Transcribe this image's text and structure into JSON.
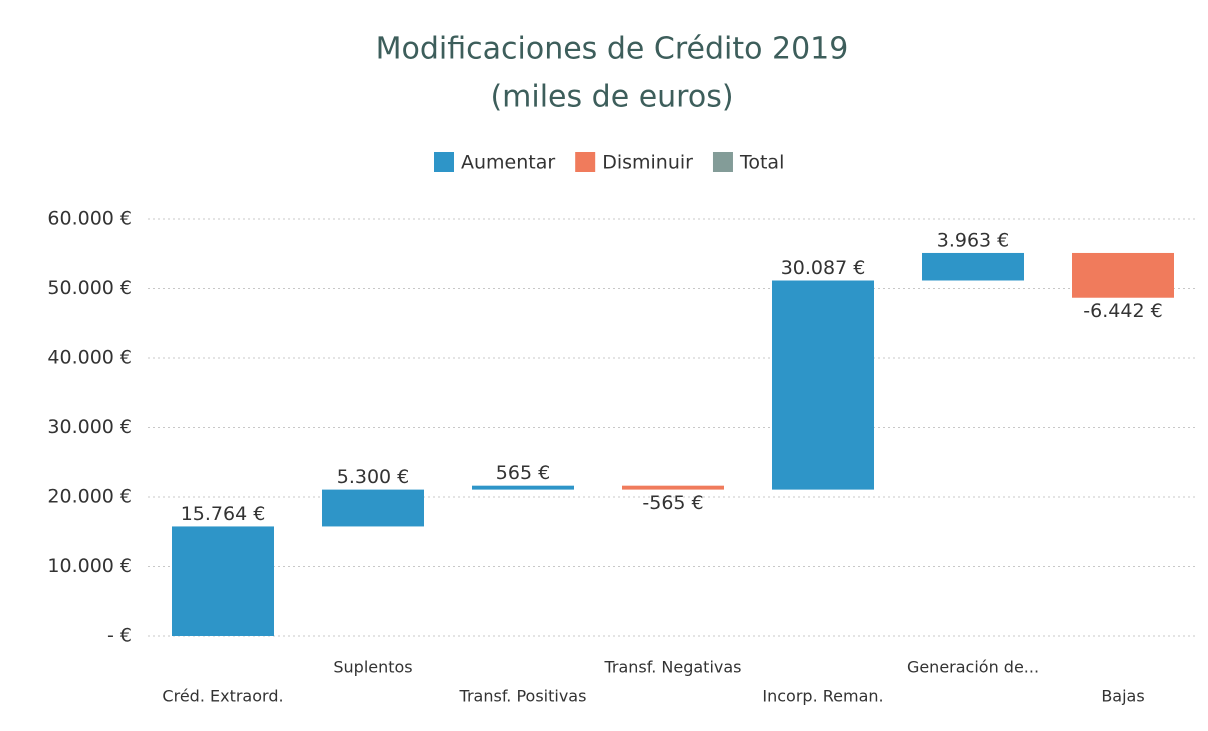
{
  "chart_data": {
    "type": "waterfall",
    "title": "Modificaciones de Crédito 2019",
    "subtitle": "(miles de euros)",
    "legend": [
      {
        "name": "Aumentar",
        "color": "#2e95c8"
      },
      {
        "name": "Disminuir",
        "color": "#f07b5c"
      },
      {
        "name": "Total",
        "color": "#839c98"
      }
    ],
    "categories": [
      "Créd. Extraord.",
      "Suplentos",
      "Transf. Positivas",
      "Transf. Negativas",
      "Incorp. Reman.",
      "Generación de...",
      "Bajas"
    ],
    "values": [
      15764,
      5300,
      565,
      -565,
      30087,
      3963,
      -6442
    ],
    "value_labels": [
      "15.764 €",
      "5.300 €",
      "565 €",
      "-565 €",
      "30.087 €",
      "3.963 €",
      "-6.442 €"
    ],
    "ylim": [
      0,
      60000
    ],
    "yticks": [
      {
        "value": 0,
        "label": "-  €"
      },
      {
        "value": 10000,
        "label": "10.000 €"
      },
      {
        "value": 20000,
        "label": "20.000 €"
      },
      {
        "value": 30000,
        "label": "30.000 €"
      },
      {
        "value": 40000,
        "label": "40.000 €"
      },
      {
        "value": 50000,
        "label": "50.000 €"
      },
      {
        "value": 60000,
        "label": "60.000 €"
      }
    ],
    "grid": true
  }
}
